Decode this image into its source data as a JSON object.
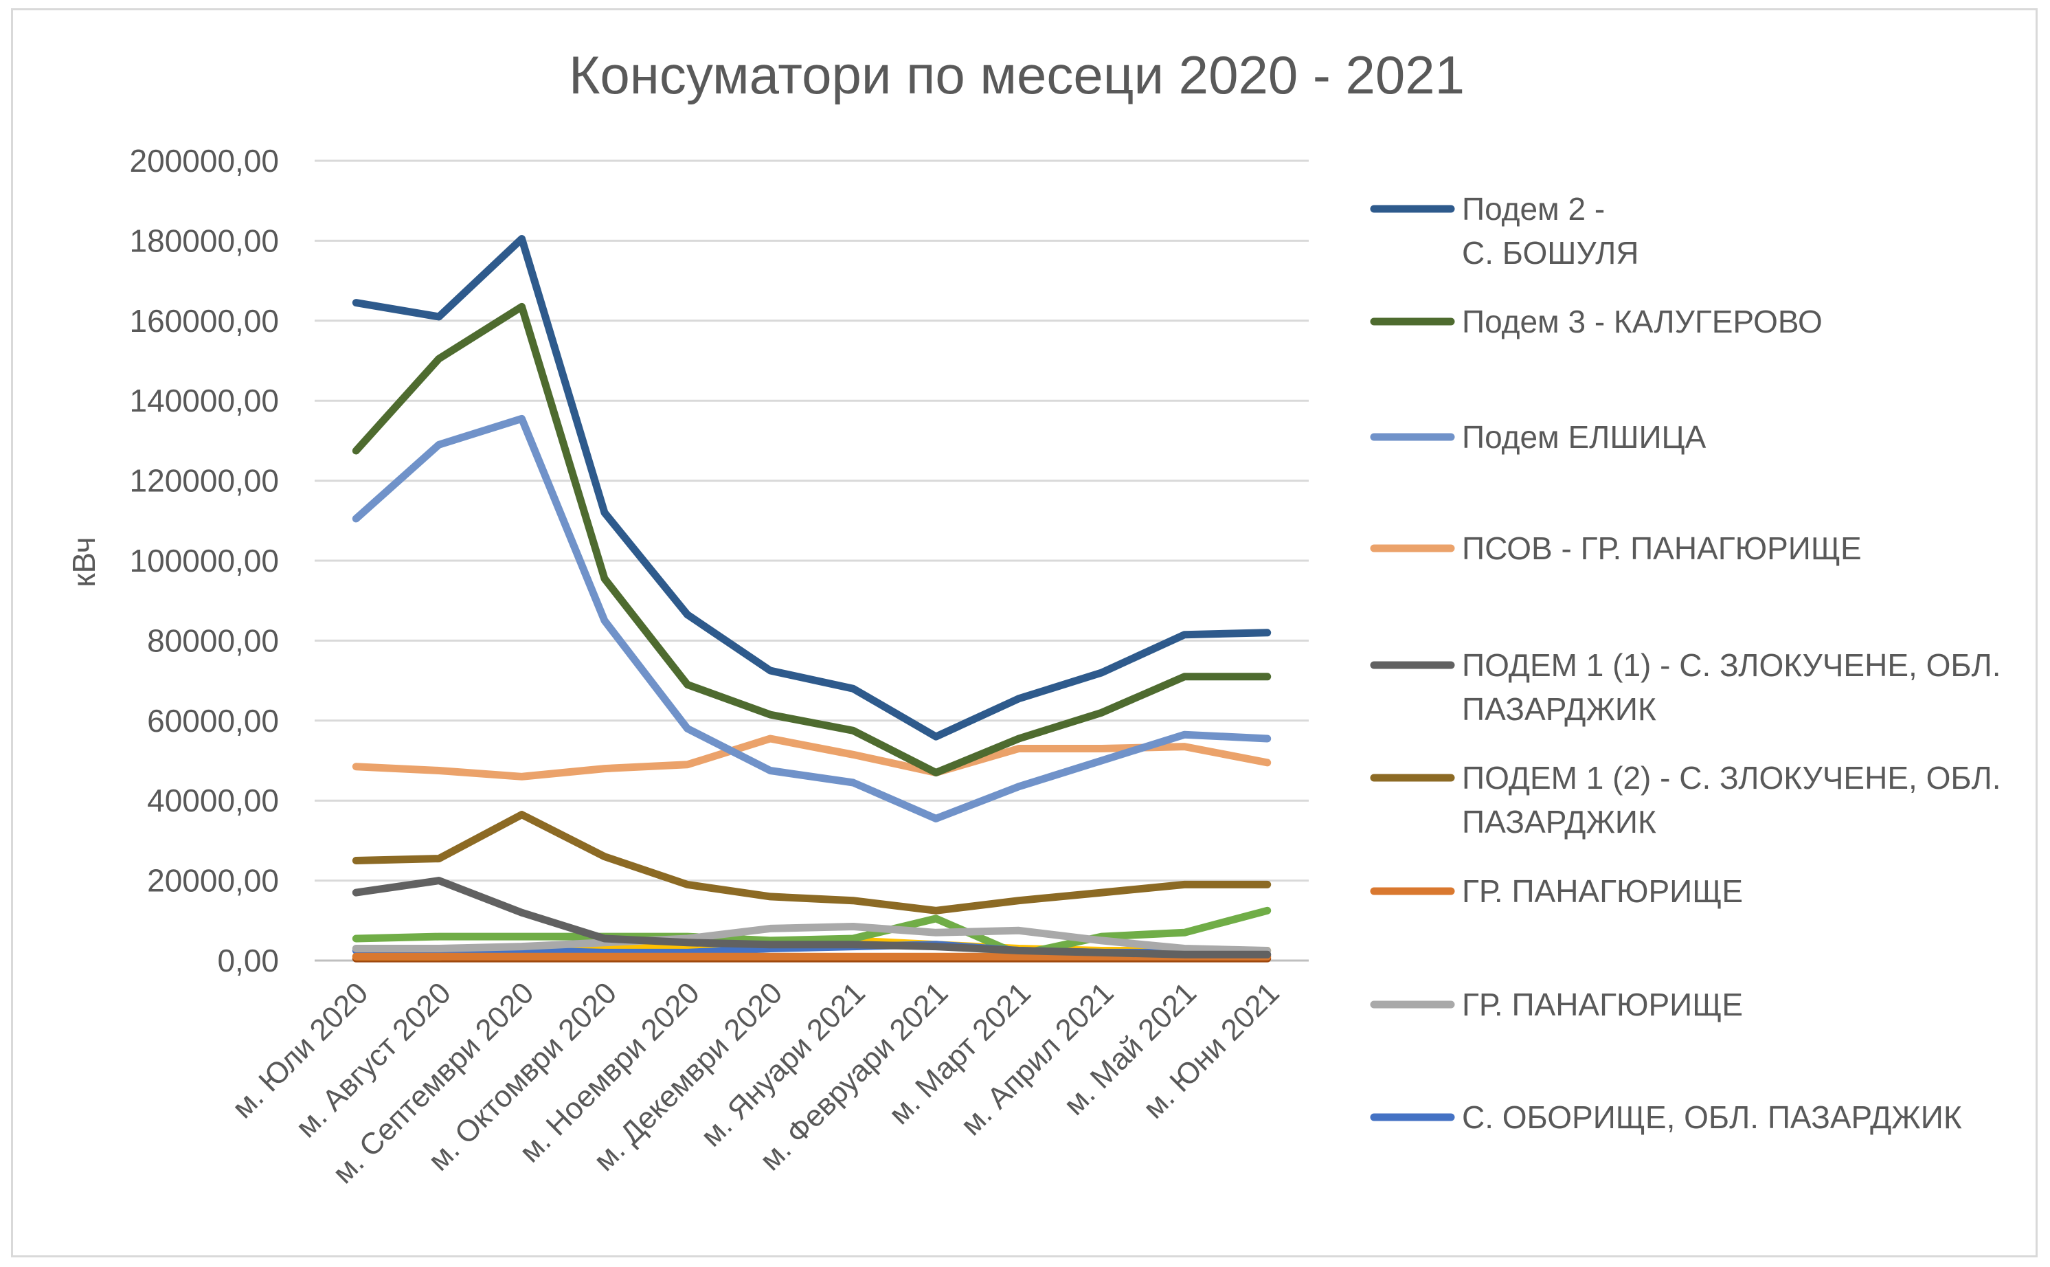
{
  "chart_data": {
    "type": "line",
    "title": "Консуматори по месеци  2020 - 2021",
    "ylabel": "кВч",
    "xlabel": "",
    "ylim": [
      0,
      200000
    ],
    "ytick_step": 20000,
    "yticks": [
      "0,00",
      "20000,00",
      "40000,00",
      "60000,00",
      "80000,00",
      "100000,00",
      "120000,00",
      "140000,00",
      "160000,00",
      "180000,00",
      "200000,00"
    ],
    "grid": "horizontal",
    "legend_position": "right",
    "categories": [
      "м. Юли 2020",
      "м. Август 2020",
      "м. Септември 2020",
      "м. Октомври 2020",
      "м. Ноември 2020",
      "м. Декември 2020",
      "м. Януари 2021",
      "м. Февруари 2021",
      "м. Март 2021",
      "м. Април 2021",
      "м. Май 2021",
      "м. Юни 2021"
    ],
    "series": [
      {
        "name": "Подем 2 - С. БОШУЛЯ",
        "legend_lines": [
          "Подем 2 -",
          "С. БОШУЛЯ"
        ],
        "color": "#2e5a8c",
        "values": [
          164500,
          161000,
          180500,
          112000,
          86500,
          72500,
          68000,
          56000,
          65500,
          72000,
          81500,
          82000
        ]
      },
      {
        "name": "Подем 3 -  КАЛУГЕРОВО",
        "legend_lines": [
          "Подем 3 -  КАЛУГЕРОВО"
        ],
        "color": "#4e6b2f",
        "values": [
          127500,
          150500,
          163500,
          95500,
          69000,
          61500,
          57500,
          47000,
          55500,
          62000,
          71000,
          71000
        ]
      },
      {
        "name": "Подем ЕЛШИЦА",
        "legend_lines": [
          "Подем ЕЛШИЦА"
        ],
        "color": "#7092c9",
        "values": [
          110500,
          129000,
          135500,
          85000,
          58000,
          47500,
          44500,
          35500,
          43500,
          50000,
          56500,
          55500
        ]
      },
      {
        "name": "ПСОВ - ГР. ПАНАГЮРИЩЕ",
        "legend_lines": [
          "ПСОВ - ГР. ПАНАГЮРИЩЕ"
        ],
        "color": "#eba26a",
        "values": [
          48500,
          47500,
          46000,
          48000,
          49000,
          55500,
          51500,
          47000,
          53000,
          53000,
          53500,
          49500
        ]
      },
      {
        "name": "ПОДЕМ 1 (1) - С. ЗЛОКУЧЕНЕ, ОБЛ. ПАЗАРДЖИК",
        "legend_lines": [
          "ПОДЕМ 1 (1) - С. ЗЛОКУЧЕНЕ, ОБЛ.",
          "ПАЗАРДЖИК"
        ],
        "color": "#616161",
        "values": [
          17000,
          20000,
          12000,
          5500,
          4500,
          4000,
          4000,
          3500,
          2500,
          2000,
          1500,
          1500
        ]
      },
      {
        "name": "ПОДЕМ 1 (2) - С. ЗЛОКУЧЕНЕ, ОБЛ. ПАЗАРДЖИК",
        "legend_lines": [
          "ПОДЕМ 1 (2) - С. ЗЛОКУЧЕНЕ, ОБЛ.",
          "ПАЗАРДЖИК"
        ],
        "color": "#8c6a24",
        "values": [
          25000,
          25500,
          36500,
          26000,
          19000,
          16000,
          15000,
          12500,
          15000,
          17000,
          19000,
          19000
        ]
      },
      {
        "name": "ГР. ПАНАГЮРИЩЕ",
        "legend_lines": [
          "ГР. ПАНАГЮРИЩЕ"
        ],
        "color": "#d9782f",
        "values": [
          1000,
          1000,
          1000,
          1000,
          1000,
          1000,
          1000,
          1000,
          1000,
          1000,
          1000,
          1000
        ]
      },
      {
        "name": "ГР. ПАНАГЮРИЩЕ",
        "legend_lines": [
          "ГР. ПАНАГЮРИЩЕ"
        ],
        "color": "#a9a9a9",
        "values": [
          3000,
          3000,
          3500,
          4500,
          5500,
          8000,
          8500,
          7000,
          7500,
          5000,
          3000,
          2500
        ]
      },
      {
        "name": "С. ОБОРИЩЕ, ОБЛ. ПАЗАРДЖИК",
        "legend_lines": [
          "С. ОБОРИЩЕ, ОБЛ. ПАЗАРДЖИК"
        ],
        "color": "#4472c4",
        "values": [
          2500,
          2500,
          2500,
          2000,
          2000,
          3000,
          3500,
          4000,
          2500,
          2000,
          2000,
          1500
        ]
      },
      {
        "color": "#70ad47",
        "values": [
          5500,
          6000,
          6000,
          6000,
          6000,
          5000,
          5500,
          10500,
          1500,
          6000,
          7000,
          12500
        ]
      },
      {
        "color": "#ffc000",
        "values": [
          1000,
          1000,
          2000,
          3500,
          3500,
          3500,
          5000,
          4000,
          3000,
          2500,
          2500,
          2500
        ]
      },
      {
        "color": "#9e480e",
        "values": [
          500,
          500,
          500,
          500,
          500,
          500,
          500,
          500,
          500,
          500,
          500,
          500
        ]
      }
    ]
  }
}
